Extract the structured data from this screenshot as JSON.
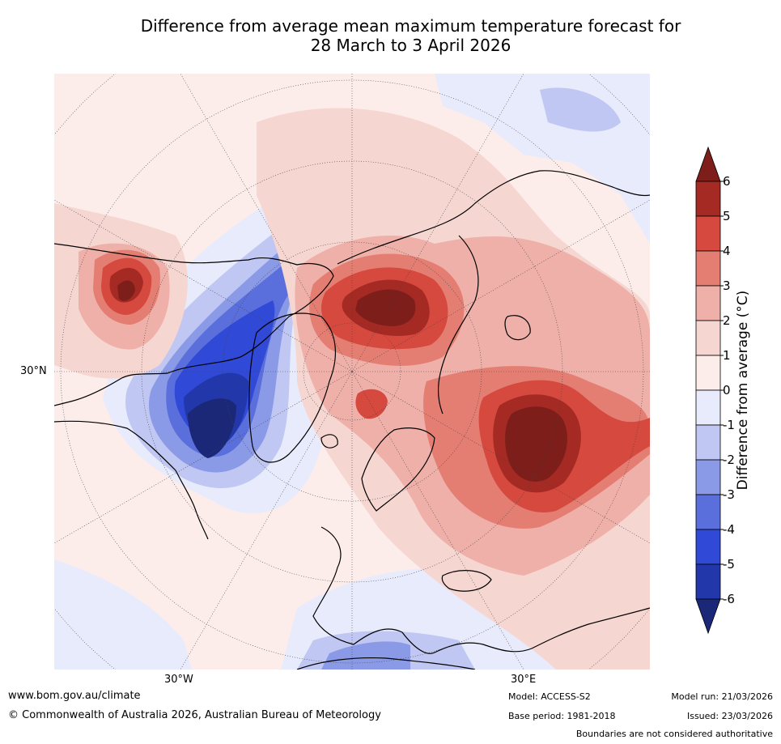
{
  "title_line1": "Difference from average mean maximum temperature forecast for",
  "title_line2": "28 March to 3 April 2026",
  "map": {
    "projection": "north-polar-stereographic",
    "graticule": {
      "lat_label": "30°N",
      "lon_labels": [
        "30°W",
        "30°E"
      ]
    }
  },
  "colorbar": {
    "label": "Difference from average (°C)",
    "ticks": [
      "6",
      "5",
      "4",
      "3",
      "2",
      "1",
      "0",
      "-1",
      "-2",
      "-3",
      "-4",
      "-5",
      "-6"
    ],
    "bins": [
      {
        "range": ">6",
        "color": "#7d1e1a"
      },
      {
        "range": "5 to 6",
        "color": "#a52a24"
      },
      {
        "range": "4 to 5",
        "color": "#d6493e"
      },
      {
        "range": "3 to 4",
        "color": "#e47e73"
      },
      {
        "range": "2 to 3",
        "color": "#eeb0a8"
      },
      {
        "range": "1 to 2",
        "color": "#f6d6d1"
      },
      {
        "range": "0 to 1",
        "color": "#fcedea"
      },
      {
        "range": "-1 to 0",
        "color": "#e8ebfb"
      },
      {
        "range": "-2 to -1",
        "color": "#bfc7f2"
      },
      {
        "range": "-3 to -2",
        "color": "#8a9ae6"
      },
      {
        "range": "-4 to -3",
        "color": "#5a6fdb"
      },
      {
        "range": "-5 to -4",
        "color": "#3049d6"
      },
      {
        "range": "-6 to -5",
        "color": "#2237a9"
      },
      {
        "range": "<-6",
        "color": "#1b2878"
      }
    ]
  },
  "footer": {
    "website": "www.bom.gov.au/climate",
    "copyright": "© Commonwealth of Australia 2026, Australian Bureau of Meteorology",
    "model": "Model: ACCESS-S2",
    "base_period": "Base period: 1981-2018",
    "model_run": "Model run: 21/03/2026",
    "issued": "Issued: 23/03/2026",
    "disclaimer": "Boundaries are not considered authoritative"
  }
}
